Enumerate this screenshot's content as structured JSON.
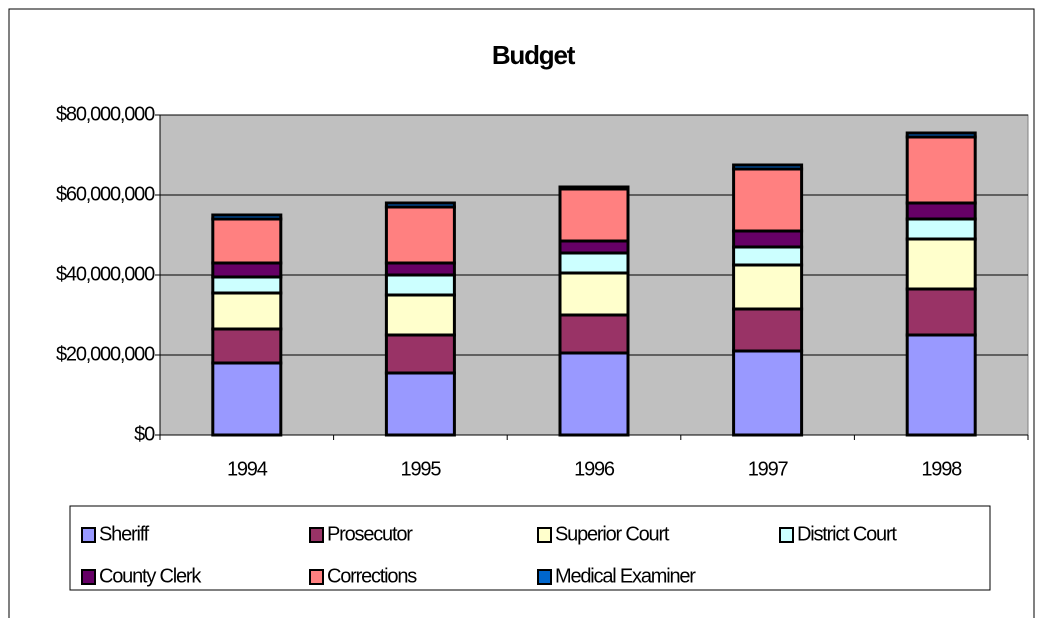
{
  "chart_data": {
    "type": "stacked_bar",
    "title": "Budget",
    "categories": [
      "1994",
      "1995",
      "1996",
      "1997",
      "1998"
    ],
    "series": [
      {
        "name": "Sheriff",
        "color": "#9999ff",
        "values": [
          18000000,
          15500000,
          20500000,
          21000000,
          25000000
        ]
      },
      {
        "name": "Prosecutor",
        "color": "#993366",
        "values": [
          8500000,
          9500000,
          9500000,
          10500000,
          11500000
        ]
      },
      {
        "name": "Superior Court",
        "color": "#ffffcc",
        "values": [
          9000000,
          10000000,
          10500000,
          11000000,
          12500000
        ]
      },
      {
        "name": "District Court",
        "color": "#ccffff",
        "values": [
          4000000,
          5000000,
          5000000,
          4500000,
          5000000
        ]
      },
      {
        "name": "County Clerk",
        "color": "#660066",
        "values": [
          3500000,
          3000000,
          3000000,
          4000000,
          4000000
        ]
      },
      {
        "name": "Corrections",
        "color": "#ff8080",
        "values": [
          11000000,
          14000000,
          13000000,
          15500000,
          16500000
        ]
      },
      {
        "name": "Medical Examiner",
        "color": "#0066cc",
        "values": [
          1000000,
          1000000,
          500000,
          1000000,
          1000000
        ]
      }
    ],
    "ylim": [
      0,
      80000000
    ],
    "yticks": [
      {
        "value": 0,
        "label": "$0"
      },
      {
        "value": 20000000,
        "label": "$20,000,000"
      },
      {
        "value": 40000000,
        "label": "$40,000,000"
      },
      {
        "value": 60000000,
        "label": "$60,000,000"
      },
      {
        "value": 80000000,
        "label": "$80,000,000"
      }
    ],
    "grid": true,
    "background": "#c0c0c0",
    "legend": "bottom"
  }
}
